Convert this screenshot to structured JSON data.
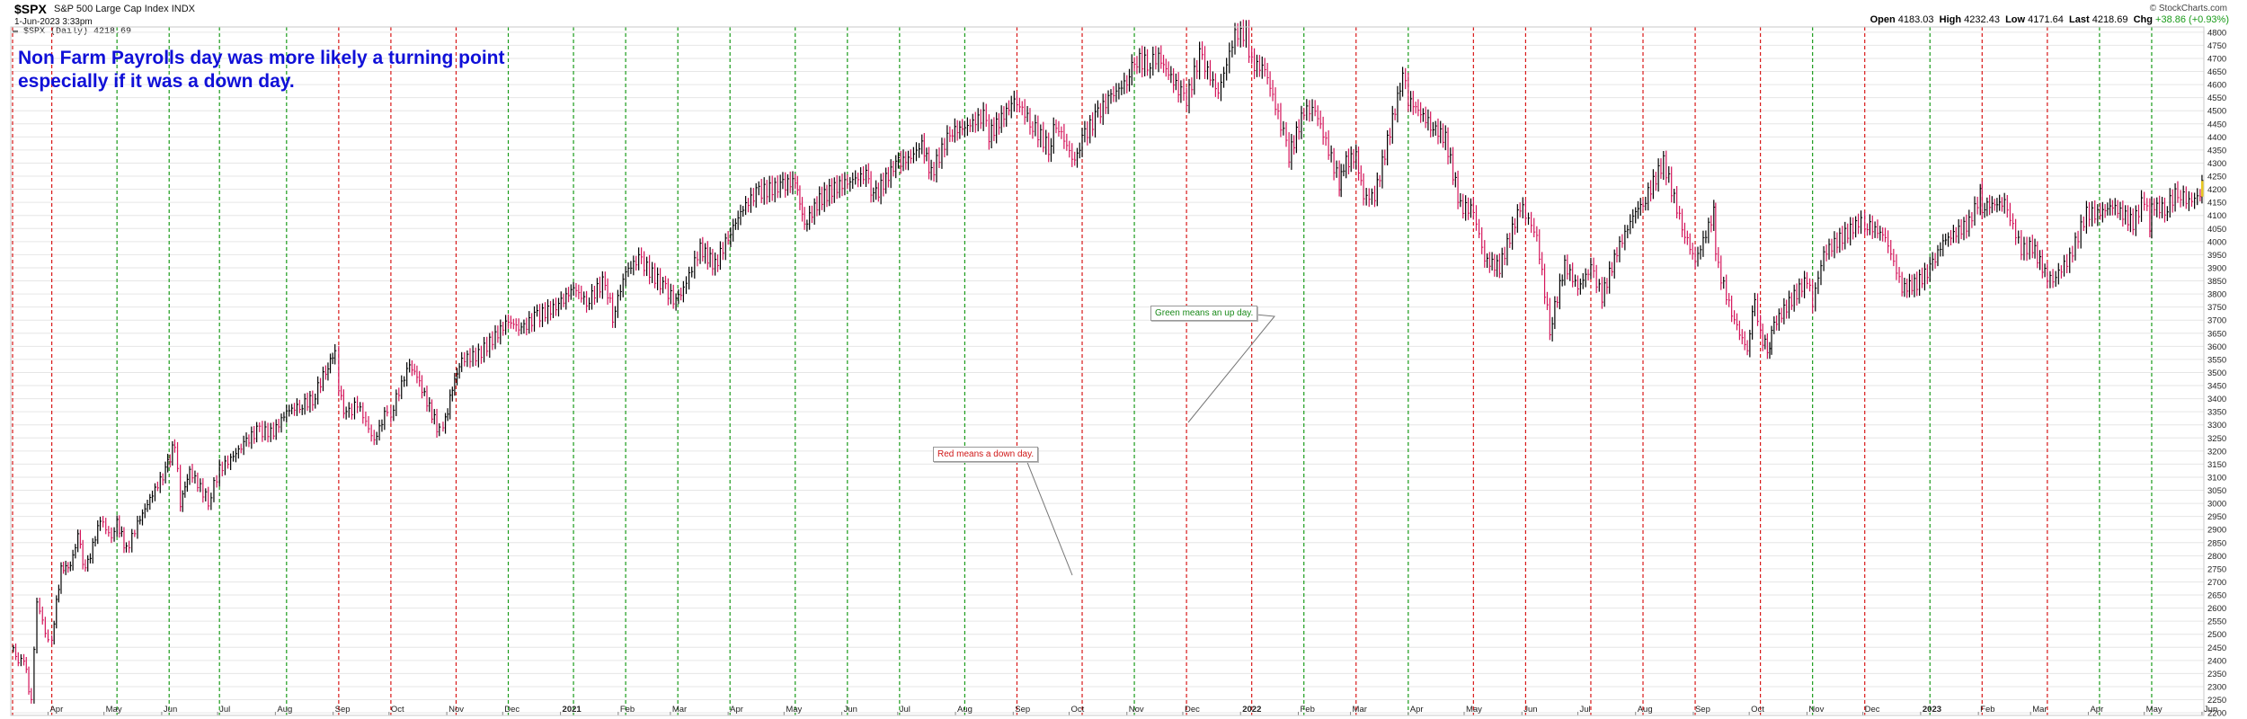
{
  "header": {
    "symbol": "$SPX",
    "name": "S&P 500 Large Cap Index",
    "exchange": "INDX",
    "date": "1-Jun-2023 3:33pm",
    "legend": "▬ $SPX (Daily) 4218.69",
    "open_label": "Open",
    "open": "4183.03",
    "high_label": "High",
    "high": "4232.43",
    "low_label": "Low",
    "low": "4171.64",
    "last_label": "Last",
    "last": "4218.69",
    "chg_label": "Chg",
    "chg": "+38.86 (+0.93%)",
    "watermark": "© StockCharts.com"
  },
  "annotations": {
    "note_line1": "Non Farm Payrolls day was more likely a turning point",
    "note_line2": "especially if it was a down day.",
    "green_callout": "Green means an up day.",
    "red_callout": "Red means a down day."
  },
  "colors": {
    "up": "#1a9b1a",
    "down": "#d81818",
    "bar_up": "#000000",
    "bar_down": "#d4145a",
    "note": "#1010d8",
    "grid": "#e6e6e6"
  },
  "chart_data": {
    "type": "line",
    "title": "",
    "ylabel": "",
    "ylim": [
      2190,
      4820
    ],
    "yticks": [
      2200,
      2250,
      2300,
      2350,
      2400,
      2450,
      2500,
      2550,
      2600,
      2650,
      2700,
      2750,
      2800,
      2850,
      2900,
      2950,
      3000,
      3050,
      3100,
      3150,
      3200,
      3250,
      3300,
      3350,
      3400,
      3450,
      3500,
      3550,
      3600,
      3650,
      3700,
      3750,
      3800,
      3850,
      3900,
      3950,
      4000,
      4050,
      4100,
      4150,
      4200,
      4250,
      4300,
      4350,
      4400,
      4450,
      4500,
      4550,
      4600,
      4650,
      4700,
      4750,
      4800
    ],
    "xlim": [
      "2020-03-12",
      "2023-06-02"
    ],
    "month_ticks": [
      {
        "date": "2020-04-01",
        "label": "Apr",
        "bold": false
      },
      {
        "date": "2020-05-01",
        "label": "May",
        "bold": false
      },
      {
        "date": "2020-06-01",
        "label": "Jun",
        "bold": false
      },
      {
        "date": "2020-07-01",
        "label": "Jul",
        "bold": false
      },
      {
        "date": "2020-08-01",
        "label": "Aug",
        "bold": false
      },
      {
        "date": "2020-09-01",
        "label": "Sep",
        "bold": false
      },
      {
        "date": "2020-10-01",
        "label": "Oct",
        "bold": false
      },
      {
        "date": "2020-11-01",
        "label": "Nov",
        "bold": false
      },
      {
        "date": "2020-12-01",
        "label": "Dec",
        "bold": false
      },
      {
        "date": "2021-01-01",
        "label": "2021",
        "bold": true
      },
      {
        "date": "2021-02-01",
        "label": "Feb",
        "bold": false
      },
      {
        "date": "2021-03-01",
        "label": "Mar",
        "bold": false
      },
      {
        "date": "2021-04-01",
        "label": "Apr",
        "bold": false
      },
      {
        "date": "2021-05-01",
        "label": "May",
        "bold": false
      },
      {
        "date": "2021-06-01",
        "label": "Jun",
        "bold": false
      },
      {
        "date": "2021-07-01",
        "label": "Jul",
        "bold": false
      },
      {
        "date": "2021-08-01",
        "label": "Aug",
        "bold": false
      },
      {
        "date": "2021-09-01",
        "label": "Sep",
        "bold": false
      },
      {
        "date": "2021-10-01",
        "label": "Oct",
        "bold": false
      },
      {
        "date": "2021-11-01",
        "label": "Nov",
        "bold": false
      },
      {
        "date": "2021-12-01",
        "label": "Dec",
        "bold": false
      },
      {
        "date": "2022-01-01",
        "label": "2022",
        "bold": true
      },
      {
        "date": "2022-02-01",
        "label": "Feb",
        "bold": false
      },
      {
        "date": "2022-03-01",
        "label": "Mar",
        "bold": false
      },
      {
        "date": "2022-04-01",
        "label": "Apr",
        "bold": false
      },
      {
        "date": "2022-05-01",
        "label": "May",
        "bold": false
      },
      {
        "date": "2022-06-01",
        "label": "Jun",
        "bold": false
      },
      {
        "date": "2022-07-01",
        "label": "Jul",
        "bold": false
      },
      {
        "date": "2022-08-01",
        "label": "Aug",
        "bold": false
      },
      {
        "date": "2022-09-01",
        "label": "Sep",
        "bold": false
      },
      {
        "date": "2022-10-01",
        "label": "Oct",
        "bold": false
      },
      {
        "date": "2022-11-01",
        "label": "Nov",
        "bold": false
      },
      {
        "date": "2022-12-01",
        "label": "Dec",
        "bold": false
      },
      {
        "date": "2023-01-01",
        "label": "2023",
        "bold": true
      },
      {
        "date": "2023-02-01",
        "label": "Feb",
        "bold": false
      },
      {
        "date": "2023-03-01",
        "label": "Mar",
        "bold": false
      },
      {
        "date": "2023-04-01",
        "label": "Apr",
        "bold": false
      },
      {
        "date": "2023-05-01",
        "label": "May",
        "bold": false
      },
      {
        "date": "2023-06-01",
        "label": "Jun",
        "bold": false
      }
    ],
    "payroll_days": [
      {
        "date": "2020-03-06",
        "dir": "down"
      },
      {
        "date": "2020-04-03",
        "dir": "down"
      },
      {
        "date": "2020-05-08",
        "dir": "up"
      },
      {
        "date": "2020-06-05",
        "dir": "up"
      },
      {
        "date": "2020-07-02",
        "dir": "up"
      },
      {
        "date": "2020-08-07",
        "dir": "up"
      },
      {
        "date": "2020-09-04",
        "dir": "down"
      },
      {
        "date": "2020-10-02",
        "dir": "down"
      },
      {
        "date": "2020-11-06",
        "dir": "down"
      },
      {
        "date": "2020-12-04",
        "dir": "up"
      },
      {
        "date": "2021-01-08",
        "dir": "up"
      },
      {
        "date": "2021-02-05",
        "dir": "up"
      },
      {
        "date": "2021-03-05",
        "dir": "up"
      },
      {
        "date": "2021-04-02",
        "dir": "up"
      },
      {
        "date": "2021-05-07",
        "dir": "up"
      },
      {
        "date": "2021-06-04",
        "dir": "up"
      },
      {
        "date": "2021-07-02",
        "dir": "up"
      },
      {
        "date": "2021-08-06",
        "dir": "up"
      },
      {
        "date": "2021-09-03",
        "dir": "down"
      },
      {
        "date": "2021-10-08",
        "dir": "down"
      },
      {
        "date": "2021-11-05",
        "dir": "up"
      },
      {
        "date": "2021-12-03",
        "dir": "down"
      },
      {
        "date": "2022-01-07",
        "dir": "down"
      },
      {
        "date": "2022-02-04",
        "dir": "up"
      },
      {
        "date": "2022-03-04",
        "dir": "down"
      },
      {
        "date": "2022-04-01",
        "dir": "up"
      },
      {
        "date": "2022-05-06",
        "dir": "down"
      },
      {
        "date": "2022-06-03",
        "dir": "down"
      },
      {
        "date": "2022-07-08",
        "dir": "down"
      },
      {
        "date": "2022-08-05",
        "dir": "down"
      },
      {
        "date": "2022-09-02",
        "dir": "down"
      },
      {
        "date": "2022-10-07",
        "dir": "down"
      },
      {
        "date": "2022-11-04",
        "dir": "up"
      },
      {
        "date": "2022-12-02",
        "dir": "down"
      },
      {
        "date": "2023-01-06",
        "dir": "up"
      },
      {
        "date": "2023-02-03",
        "dir": "down"
      },
      {
        "date": "2023-03-10",
        "dir": "down"
      },
      {
        "date": "2023-04-07",
        "dir": "up"
      },
      {
        "date": "2023-05-05",
        "dir": "up"
      }
    ],
    "series": [
      {
        "values": [
          [
            "2020-03-12",
            2480
          ],
          [
            "2020-03-16",
            2386
          ],
          [
            "2020-03-19",
            2409
          ],
          [
            "2020-03-23",
            2237
          ],
          [
            "2020-03-26",
            2630
          ],
          [
            "2020-04-01",
            2470
          ],
          [
            "2020-04-03",
            2489
          ],
          [
            "2020-04-08",
            2749
          ],
          [
            "2020-04-13",
            2761
          ],
          [
            "2020-04-17",
            2875
          ],
          [
            "2020-04-21",
            2737
          ],
          [
            "2020-04-29",
            2939
          ],
          [
            "2020-05-05",
            2868
          ],
          [
            "2020-05-08",
            2930
          ],
          [
            "2020-05-13",
            2820
          ],
          [
            "2020-05-19",
            2922
          ],
          [
            "2020-05-27",
            3036
          ],
          [
            "2020-06-03",
            3122
          ],
          [
            "2020-06-08",
            3232
          ],
          [
            "2020-06-11",
            3002
          ],
          [
            "2020-06-16",
            3125
          ],
          [
            "2020-06-26",
            3009
          ],
          [
            "2020-07-02",
            3130
          ],
          [
            "2020-07-08",
            3169
          ],
          [
            "2020-07-15",
            3226
          ],
          [
            "2020-07-22",
            3276
          ],
          [
            "2020-07-31",
            3271
          ],
          [
            "2020-08-07",
            3351
          ],
          [
            "2020-08-14",
            3372
          ],
          [
            "2020-08-21",
            3397
          ],
          [
            "2020-08-28",
            3508
          ],
          [
            "2020-09-02",
            3580
          ],
          [
            "2020-09-04",
            3426
          ],
          [
            "2020-09-08",
            3331
          ],
          [
            "2020-09-14",
            3383
          ],
          [
            "2020-09-23",
            3237
          ],
          [
            "2020-09-30",
            3363
          ],
          [
            "2020-10-02",
            3348
          ],
          [
            "2020-10-12",
            3534
          ],
          [
            "2020-10-16",
            3483
          ],
          [
            "2020-10-28",
            3271
          ],
          [
            "2020-10-30",
            3270
          ],
          [
            "2020-11-04",
            3443
          ],
          [
            "2020-11-09",
            3550
          ],
          [
            "2020-11-18",
            3567
          ],
          [
            "2020-11-27",
            3638
          ],
          [
            "2020-12-04",
            3699
          ],
          [
            "2020-12-11",
            3663
          ],
          [
            "2020-12-18",
            3709
          ],
          [
            "2020-12-31",
            3756
          ],
          [
            "2021-01-08",
            3824
          ],
          [
            "2021-01-15",
            3768
          ],
          [
            "2021-01-25",
            3855
          ],
          [
            "2021-01-29",
            3714
          ],
          [
            "2021-02-05",
            3886
          ],
          [
            "2021-02-12",
            3934
          ],
          [
            "2021-02-25",
            3829
          ],
          [
            "2021-03-04",
            3768
          ],
          [
            "2021-03-08",
            3821
          ],
          [
            "2021-03-17",
            3974
          ],
          [
            "2021-03-25",
            3909
          ],
          [
            "2021-04-01",
            4019
          ],
          [
            "2021-04-09",
            4128
          ],
          [
            "2021-04-16",
            4185
          ],
          [
            "2021-04-29",
            4211
          ],
          [
            "2021-05-07",
            4232
          ],
          [
            "2021-05-12",
            4063
          ],
          [
            "2021-05-20",
            4159
          ],
          [
            "2021-05-28",
            4204
          ],
          [
            "2021-06-04",
            4229
          ],
          [
            "2021-06-14",
            4255
          ],
          [
            "2021-06-18",
            4166
          ],
          [
            "2021-06-30",
            4297
          ],
          [
            "2021-07-08",
            4320
          ],
          [
            "2021-07-14",
            4374
          ],
          [
            "2021-07-19",
            4258
          ],
          [
            "2021-07-29",
            4419
          ],
          [
            "2021-08-06",
            4436
          ],
          [
            "2021-08-16",
            4479
          ],
          [
            "2021-08-19",
            4405
          ],
          [
            "2021-08-31",
            4523
          ],
          [
            "2021-09-03",
            4535
          ],
          [
            "2021-09-10",
            4458
          ],
          [
            "2021-09-20",
            4358
          ],
          [
            "2021-09-24",
            4455
          ],
          [
            "2021-10-04",
            4300
          ],
          [
            "2021-10-08",
            4391
          ],
          [
            "2021-10-15",
            4471
          ],
          [
            "2021-10-22",
            4544
          ],
          [
            "2021-11-01",
            4613
          ],
          [
            "2021-11-05",
            4697
          ],
          [
            "2021-11-12",
            4682
          ],
          [
            "2021-11-18",
            4704
          ],
          [
            "2021-11-30",
            4567
          ],
          [
            "2021-12-03",
            4538
          ],
          [
            "2021-12-10",
            4712
          ],
          [
            "2021-12-20",
            4568
          ],
          [
            "2021-12-29",
            4793
          ],
          [
            "2022-01-04",
            4793
          ],
          [
            "2022-01-07",
            4677
          ],
          [
            "2022-01-14",
            4662
          ],
          [
            "2022-01-24",
            4410
          ],
          [
            "2022-01-27",
            4326
          ],
          [
            "2022-02-04",
            4500
          ],
          [
            "2022-02-10",
            4504
          ],
          [
            "2022-02-23",
            4225
          ],
          [
            "2022-02-24",
            4288
          ],
          [
            "2022-03-04",
            4329
          ],
          [
            "2022-03-08",
            4170
          ],
          [
            "2022-03-14",
            4173
          ],
          [
            "2022-03-29",
            4632
          ],
          [
            "2022-04-01",
            4545
          ],
          [
            "2022-04-13",
            4446
          ],
          [
            "2022-04-21",
            4393
          ],
          [
            "2022-04-29",
            4132
          ],
          [
            "2022-05-06",
            4123
          ],
          [
            "2022-05-12",
            3930
          ],
          [
            "2022-05-20",
            3901
          ],
          [
            "2022-05-31",
            4132
          ],
          [
            "2022-06-03",
            4108
          ],
          [
            "2022-06-09",
            4017
          ],
          [
            "2022-06-16",
            3667
          ],
          [
            "2022-06-24",
            3912
          ],
          [
            "2022-07-01",
            3825
          ],
          [
            "2022-07-08",
            3899
          ],
          [
            "2022-07-14",
            3791
          ],
          [
            "2022-07-22",
            3962
          ],
          [
            "2022-08-01",
            4119
          ],
          [
            "2022-08-05",
            4145
          ],
          [
            "2022-08-16",
            4305
          ],
          [
            "2022-08-26",
            4057
          ],
          [
            "2022-09-02",
            3924
          ],
          [
            "2022-09-12",
            4110
          ],
          [
            "2022-09-13",
            3932
          ],
          [
            "2022-09-23",
            3693
          ],
          [
            "2022-09-30",
            3586
          ],
          [
            "2022-10-04",
            3791
          ],
          [
            "2022-10-07",
            3640
          ],
          [
            "2022-10-12",
            3577
          ],
          [
            "2022-10-13",
            3669
          ],
          [
            "2022-10-21",
            3752
          ],
          [
            "2022-11-01",
            3856
          ],
          [
            "2022-11-04",
            3770
          ],
          [
            "2022-11-10",
            3956
          ],
          [
            "2022-11-30",
            4080
          ],
          [
            "2022-12-02",
            4072
          ],
          [
            "2022-12-13",
            4019
          ],
          [
            "2022-12-22",
            3822
          ],
          [
            "2022-12-30",
            3840
          ],
          [
            "2023-01-06",
            3895
          ],
          [
            "2023-01-13",
            3999
          ],
          [
            "2023-01-27",
            4070
          ],
          [
            "2023-02-02",
            4179
          ],
          [
            "2023-02-03",
            4136
          ],
          [
            "2023-02-15",
            4147
          ],
          [
            "2023-02-24",
            3970
          ],
          [
            "2023-03-02",
            3981
          ],
          [
            "2023-03-10",
            3862
          ],
          [
            "2023-03-13",
            3855
          ],
          [
            "2023-03-22",
            3937
          ],
          [
            "2023-03-31",
            4109
          ],
          [
            "2023-04-06",
            4105
          ],
          [
            "2023-04-14",
            4137
          ],
          [
            "2023-04-25",
            4071
          ],
          [
            "2023-05-01",
            4167
          ],
          [
            "2023-05-04",
            4061
          ],
          [
            "2023-05-05",
            4136
          ],
          [
            "2023-05-12",
            4124
          ],
          [
            "2023-05-19",
            4191
          ],
          [
            "2023-05-25",
            4151
          ],
          [
            "2023-05-31",
            4179
          ],
          [
            "2023-06-01",
            4218.69
          ]
        ]
      }
    ]
  }
}
